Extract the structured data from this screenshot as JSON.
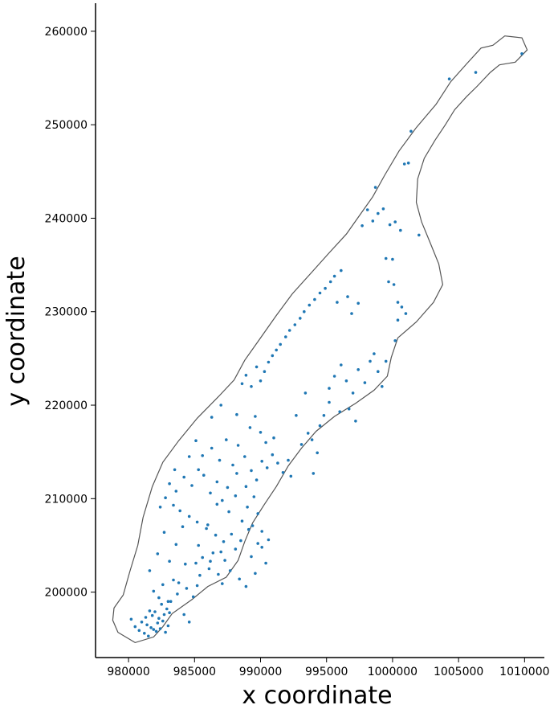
{
  "chart_data": {
    "type": "scatter",
    "title": "",
    "xlabel": "x coordinate",
    "ylabel": "y coordinate",
    "xlim": [
      977500,
      1011500
    ],
    "ylim": [
      193000,
      263000
    ],
    "xticks": [
      980000,
      985000,
      990000,
      995000,
      1000000,
      1005000,
      1010000
    ],
    "yticks": [
      200000,
      210000,
      220000,
      230000,
      240000,
      250000,
      260000
    ],
    "xtick_labels": [
      "980000",
      "985000",
      "990000",
      "995000",
      "1000000",
      "1005000",
      "1010000"
    ],
    "ytick_labels": [
      "200000",
      "210000",
      "220000",
      "230000",
      "240000",
      "250000",
      "260000"
    ],
    "grid": false,
    "point_color": "#1f77b4",
    "outline_color": "#555555",
    "outline": [
      [
        980500,
        194600
      ],
      [
        979200,
        195700
      ],
      [
        978800,
        197000
      ],
      [
        978900,
        198300
      ],
      [
        979600,
        199700
      ],
      [
        980100,
        202200
      ],
      [
        980700,
        205000
      ],
      [
        981100,
        208000
      ],
      [
        981800,
        211300
      ],
      [
        982600,
        213900
      ],
      [
        983800,
        216200
      ],
      [
        985200,
        218600
      ],
      [
        986800,
        220900
      ],
      [
        988000,
        222700
      ],
      [
        988800,
        224800
      ],
      [
        989900,
        227000
      ],
      [
        991200,
        229600
      ],
      [
        992400,
        231900
      ],
      [
        993800,
        234100
      ],
      [
        995200,
        236300
      ],
      [
        996500,
        238300
      ],
      [
        997500,
        240300
      ],
      [
        998500,
        242300
      ],
      [
        999400,
        244600
      ],
      [
        1000500,
        247200
      ],
      [
        1001800,
        249700
      ],
      [
        1003300,
        252200
      ],
      [
        1004400,
        254600
      ],
      [
        1005600,
        256500
      ],
      [
        1006700,
        258200
      ],
      [
        1007600,
        258500
      ],
      [
        1008500,
        259500
      ],
      [
        1009800,
        259300
      ],
      [
        1010200,
        258000
      ],
      [
        1009300,
        256700
      ],
      [
        1008100,
        256400
      ],
      [
        1007400,
        255600
      ],
      [
        1006400,
        254100
      ],
      [
        1005600,
        253000
      ],
      [
        1004700,
        251600
      ],
      [
        1004000,
        250000
      ],
      [
        1003200,
        248300
      ],
      [
        1002400,
        246400
      ],
      [
        1001900,
        244200
      ],
      [
        1001800,
        241700
      ],
      [
        1002200,
        239600
      ],
      [
        1002900,
        237200
      ],
      [
        1003500,
        235100
      ],
      [
        1003800,
        232900
      ],
      [
        1003100,
        231000
      ],
      [
        1001800,
        228900
      ],
      [
        1000400,
        227200
      ],
      [
        999900,
        225100
      ],
      [
        999600,
        223100
      ],
      [
        998600,
        221600
      ],
      [
        997200,
        220200
      ],
      [
        995600,
        218800
      ],
      [
        994200,
        217200
      ],
      [
        993100,
        215400
      ],
      [
        992100,
        213500
      ],
      [
        991200,
        211300
      ],
      [
        990300,
        209400
      ],
      [
        989400,
        207400
      ],
      [
        988800,
        205400
      ],
      [
        988300,
        203400
      ],
      [
        987400,
        201600
      ],
      [
        986000,
        200600
      ],
      [
        984800,
        199200
      ],
      [
        983300,
        197700
      ],
      [
        982600,
        196300
      ],
      [
        981900,
        195200
      ]
    ],
    "points": [
      [
        980200,
        197100
      ],
      [
        980500,
        196300
      ],
      [
        980800,
        195900
      ],
      [
        981000,
        196800
      ],
      [
        981200,
        195600
      ],
      [
        981300,
        197300
      ],
      [
        981400,
        196500
      ],
      [
        981500,
        195300
      ],
      [
        981600,
        198000
      ],
      [
        981700,
        196200
      ],
      [
        981800,
        197500
      ],
      [
        981900,
        196000
      ],
      [
        982000,
        197900
      ],
      [
        982100,
        195800
      ],
      [
        982200,
        196700
      ],
      [
        982300,
        197200
      ],
      [
        982400,
        196100
      ],
      [
        982500,
        198700
      ],
      [
        982600,
        196900
      ],
      [
        982700,
        197600
      ],
      [
        982800,
        195700
      ],
      [
        982900,
        198200
      ],
      [
        983000,
        196400
      ],
      [
        983100,
        197800
      ],
      [
        983200,
        199000
      ],
      [
        982300,
        199400
      ],
      [
        981900,
        200100
      ],
      [
        982600,
        200800
      ],
      [
        983400,
        201300
      ],
      [
        983700,
        199800
      ],
      [
        984200,
        197600
      ],
      [
        984600,
        196800
      ],
      [
        984400,
        200400
      ],
      [
        984900,
        199500
      ],
      [
        985200,
        200700
      ],
      [
        985400,
        201800
      ],
      [
        985100,
        203100
      ],
      [
        985600,
        203700
      ],
      [
        986100,
        202500
      ],
      [
        986400,
        204200
      ],
      [
        986800,
        201900
      ],
      [
        987100,
        200900
      ],
      [
        987300,
        203400
      ],
      [
        987700,
        202300
      ],
      [
        988100,
        204600
      ],
      [
        988400,
        201400
      ],
      [
        988900,
        200600
      ],
      [
        989300,
        203800
      ],
      [
        989600,
        202000
      ],
      [
        990100,
        204800
      ],
      [
        990400,
        203100
      ],
      [
        990600,
        205600
      ],
      [
        987200,
        205400
      ],
      [
        986600,
        206100
      ],
      [
        985900,
        206800
      ],
      [
        985200,
        207500
      ],
      [
        984600,
        208100
      ],
      [
        983900,
        208700
      ],
      [
        983400,
        209300
      ],
      [
        982800,
        210100
      ],
      [
        982400,
        209100
      ],
      [
        983100,
        211600
      ],
      [
        983600,
        210800
      ],
      [
        984200,
        212300
      ],
      [
        984800,
        211400
      ],
      [
        985300,
        213100
      ],
      [
        985700,
        212500
      ],
      [
        986200,
        210600
      ],
      [
        986700,
        211800
      ],
      [
        987100,
        209800
      ],
      [
        987600,
        208600
      ],
      [
        988100,
        210300
      ],
      [
        988600,
        207600
      ],
      [
        989000,
        209100
      ],
      [
        989400,
        207100
      ],
      [
        989800,
        208400
      ],
      [
        990100,
        206500
      ],
      [
        985600,
        214600
      ],
      [
        986300,
        215400
      ],
      [
        986900,
        214100
      ],
      [
        987400,
        216300
      ],
      [
        987900,
        213600
      ],
      [
        988300,
        215700
      ],
      [
        988800,
        214500
      ],
      [
        989300,
        213000
      ],
      [
        989700,
        212000
      ],
      [
        990100,
        214000
      ],
      [
        990500,
        213300
      ],
      [
        990900,
        214700
      ],
      [
        991300,
        213800
      ],
      [
        991700,
        212800
      ],
      [
        992100,
        214100
      ],
      [
        992300,
        212400
      ],
      [
        989200,
        217600
      ],
      [
        989600,
        218800
      ],
      [
        990000,
        217100
      ],
      [
        990400,
        216000
      ],
      [
        991000,
        216500
      ],
      [
        993100,
        215800
      ],
      [
        993600,
        217000
      ],
      [
        993900,
        216300
      ],
      [
        994500,
        217800
      ],
      [
        994300,
        214900
      ],
      [
        994000,
        212700
      ],
      [
        988600,
        222300
      ],
      [
        988900,
        223200
      ],
      [
        989300,
        222000
      ],
      [
        989700,
        224100
      ],
      [
        990000,
        222600
      ],
      [
        990300,
        223600
      ],
      [
        990600,
        224600
      ],
      [
        990900,
        225300
      ],
      [
        991200,
        225900
      ],
      [
        991500,
        226500
      ],
      [
        991900,
        227300
      ],
      [
        992200,
        228000
      ],
      [
        992600,
        228600
      ],
      [
        993000,
        229300
      ],
      [
        993300,
        230000
      ],
      [
        993700,
        230700
      ],
      [
        994100,
        231300
      ],
      [
        994500,
        232000
      ],
      [
        994900,
        232500
      ],
      [
        995300,
        233200
      ],
      [
        995600,
        233800
      ],
      [
        996100,
        234400
      ],
      [
        996900,
        229800
      ],
      [
        997400,
        230900
      ],
      [
        995800,
        231000
      ],
      [
        996600,
        231600
      ],
      [
        995200,
        221800
      ],
      [
        995600,
        223100
      ],
      [
        996100,
        224300
      ],
      [
        996500,
        222600
      ],
      [
        997000,
        221300
      ],
      [
        997400,
        223800
      ],
      [
        997900,
        222400
      ],
      [
        998300,
        224700
      ],
      [
        998600,
        225500
      ],
      [
        998900,
        223600
      ],
      [
        999200,
        222000
      ],
      [
        999500,
        224700
      ],
      [
        996000,
        219300
      ],
      [
        996700,
        219600
      ],
      [
        997200,
        218300
      ],
      [
        994800,
        218900
      ],
      [
        995200,
        220300
      ],
      [
        997700,
        239200
      ],
      [
        998100,
        240900
      ],
      [
        998500,
        239700
      ],
      [
        998900,
        240500
      ],
      [
        999300,
        241000
      ],
      [
        999800,
        239300
      ],
      [
        1000200,
        239600
      ],
      [
        1000600,
        238700
      ],
      [
        1000000,
        235600
      ],
      [
        999700,
        233200
      ],
      [
        1000100,
        232900
      ],
      [
        1000400,
        231000
      ],
      [
        1000700,
        230500
      ],
      [
        1000400,
        229100
      ],
      [
        1000900,
        245800
      ],
      [
        1001200,
        245900
      ],
      [
        1001400,
        249300
      ],
      [
        1002000,
        238200
      ],
      [
        1004300,
        254900
      ],
      [
        1006300,
        255600
      ],
      [
        1009800,
        257600
      ],
      [
        999500,
        235700
      ],
      [
        998700,
        243300
      ],
      [
        1001000,
        229800
      ],
      [
        1000200,
        226900
      ],
      [
        993400,
        221300
      ],
      [
        992700,
        218900
      ],
      [
        983100,
        203300
      ],
      [
        983600,
        205100
      ],
      [
        984100,
        207000
      ],
      [
        981600,
        202300
      ],
      [
        982200,
        204100
      ],
      [
        982700,
        206400
      ],
      [
        983500,
        213100
      ],
      [
        984600,
        214500
      ],
      [
        985100,
        216200
      ],
      [
        986300,
        218700
      ],
      [
        987000,
        220000
      ],
      [
        988200,
        219000
      ],
      [
        983000,
        199000
      ],
      [
        983800,
        201000
      ],
      [
        984300,
        203000
      ],
      [
        985300,
        205000
      ],
      [
        986000,
        207200
      ],
      [
        986700,
        209400
      ],
      [
        987500,
        211200
      ],
      [
        988200,
        212700
      ],
      [
        988900,
        211300
      ],
      [
        989500,
        210200
      ],
      [
        986200,
        203300
      ],
      [
        987000,
        204300
      ],
      [
        987800,
        206200
      ],
      [
        988500,
        205500
      ],
      [
        989100,
        206700
      ],
      [
        989800,
        205200
      ]
    ]
  }
}
